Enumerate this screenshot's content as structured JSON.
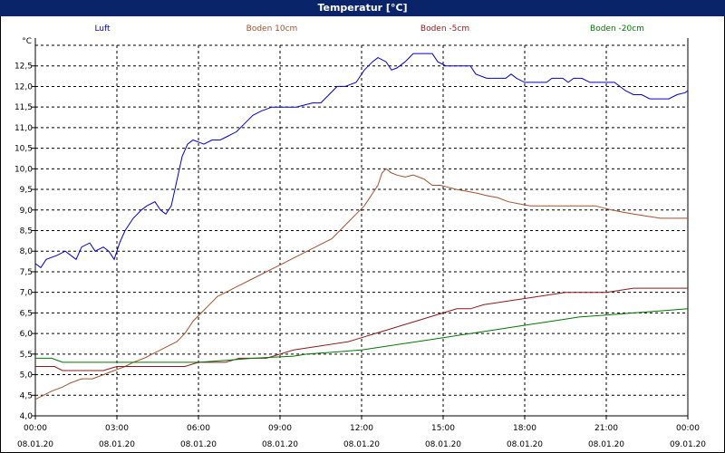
{
  "window": {
    "title": "Temperatur [°C]"
  },
  "chart_data": {
    "type": "line",
    "unit_label": "°C",
    "ylim": [
      4.0,
      13.0
    ],
    "yticks": [
      "4,0",
      "4,5",
      "5,0",
      "5,5",
      "6,0",
      "6,5",
      "7,0",
      "7,5",
      "8,0",
      "8,5",
      "9,0",
      "9,5",
      "10,0",
      "10,5",
      "11,0",
      "11,5",
      "12,0",
      "12,5"
    ],
    "xlim": [
      0,
      24
    ],
    "xticks": [
      {
        "x": 0,
        "time": "00:00",
        "date": "08.01.20"
      },
      {
        "x": 3,
        "time": "03:00",
        "date": "08.01.20"
      },
      {
        "x": 6,
        "time": "06:00",
        "date": "08.01.20"
      },
      {
        "x": 9,
        "time": "09:00",
        "date": "08.01.20"
      },
      {
        "x": 12,
        "time": "12:00",
        "date": "08.01.20"
      },
      {
        "x": 15,
        "time": "15:00",
        "date": "08.01.20"
      },
      {
        "x": 18,
        "time": "18:00",
        "date": "08.01.20"
      },
      {
        "x": 21,
        "time": "21:00",
        "date": "08.01.20"
      },
      {
        "x": 24,
        "time": "00:00",
        "date": "09.01.20"
      }
    ],
    "grid": true,
    "legend_position": "top",
    "series": [
      {
        "name": "Luft",
        "color": "#0000cc",
        "points": [
          [
            0,
            7.7
          ],
          [
            0.2,
            7.6
          ],
          [
            0.4,
            7.8
          ],
          [
            0.8,
            7.9
          ],
          [
            1.1,
            8.0
          ],
          [
            1.3,
            7.9
          ],
          [
            1.5,
            7.8
          ],
          [
            1.7,
            8.1
          ],
          [
            2.0,
            8.2
          ],
          [
            2.2,
            8.0
          ],
          [
            2.5,
            8.1
          ],
          [
            2.7,
            8.0
          ],
          [
            2.9,
            7.8
          ],
          [
            3.1,
            8.2
          ],
          [
            3.3,
            8.5
          ],
          [
            3.6,
            8.8
          ],
          [
            3.9,
            9.0
          ],
          [
            4.1,
            9.1
          ],
          [
            4.4,
            9.2
          ],
          [
            4.6,
            9.0
          ],
          [
            4.8,
            8.9
          ],
          [
            5.0,
            9.1
          ],
          [
            5.2,
            9.7
          ],
          [
            5.4,
            10.3
          ],
          [
            5.6,
            10.6
          ],
          [
            5.8,
            10.7
          ],
          [
            6.0,
            10.65
          ],
          [
            6.2,
            10.6
          ],
          [
            6.5,
            10.7
          ],
          [
            6.8,
            10.7
          ],
          [
            7.1,
            10.8
          ],
          [
            7.4,
            10.9
          ],
          [
            7.7,
            11.1
          ],
          [
            8.0,
            11.3
          ],
          [
            8.3,
            11.4
          ],
          [
            8.7,
            11.5
          ],
          [
            9.2,
            11.5
          ],
          [
            9.6,
            11.5
          ],
          [
            9.9,
            11.55
          ],
          [
            10.2,
            11.6
          ],
          [
            10.5,
            11.6
          ],
          [
            10.8,
            11.8
          ],
          [
            11.1,
            12.0
          ],
          [
            11.4,
            12.0
          ],
          [
            11.8,
            12.1
          ],
          [
            12.1,
            12.4
          ],
          [
            12.4,
            12.6
          ],
          [
            12.6,
            12.7
          ],
          [
            12.9,
            12.6
          ],
          [
            13.1,
            12.4
          ],
          [
            13.3,
            12.45
          ],
          [
            13.6,
            12.6
          ],
          [
            13.9,
            12.8
          ],
          [
            14.3,
            12.8
          ],
          [
            14.6,
            12.8
          ],
          [
            14.8,
            12.6
          ],
          [
            15.1,
            12.5
          ],
          [
            15.5,
            12.5
          ],
          [
            16.0,
            12.5
          ],
          [
            16.2,
            12.3
          ],
          [
            16.6,
            12.2
          ],
          [
            17.0,
            12.2
          ],
          [
            17.3,
            12.2
          ],
          [
            17.5,
            12.3
          ],
          [
            17.7,
            12.2
          ],
          [
            18.0,
            12.1
          ],
          [
            18.4,
            12.1
          ],
          [
            18.8,
            12.1
          ],
          [
            19.0,
            12.2
          ],
          [
            19.4,
            12.2
          ],
          [
            19.6,
            12.1
          ],
          [
            19.8,
            12.2
          ],
          [
            20.1,
            12.2
          ],
          [
            20.4,
            12.1
          ],
          [
            20.7,
            12.1
          ],
          [
            21.0,
            12.1
          ],
          [
            21.3,
            12.1
          ],
          [
            21.5,
            12.0
          ],
          [
            21.7,
            11.9
          ],
          [
            22.0,
            11.8
          ],
          [
            22.3,
            11.8
          ],
          [
            22.6,
            11.7
          ],
          [
            23.0,
            11.7
          ],
          [
            23.3,
            11.7
          ],
          [
            23.6,
            11.8
          ],
          [
            23.9,
            11.85
          ],
          [
            24.0,
            11.9
          ]
        ]
      },
      {
        "name": "Boden 10cm",
        "color": "#a0522d",
        "points": [
          [
            0,
            4.4
          ],
          [
            0.3,
            4.5
          ],
          [
            0.6,
            4.6
          ],
          [
            1.0,
            4.7
          ],
          [
            1.3,
            4.8
          ],
          [
            1.7,
            4.9
          ],
          [
            2.1,
            4.9
          ],
          [
            2.5,
            5.0
          ],
          [
            2.9,
            5.1
          ],
          [
            3.3,
            5.2
          ],
          [
            3.6,
            5.3
          ],
          [
            4.0,
            5.4
          ],
          [
            4.3,
            5.5
          ],
          [
            4.6,
            5.6
          ],
          [
            4.9,
            5.7
          ],
          [
            5.2,
            5.8
          ],
          [
            5.5,
            6.0
          ],
          [
            5.8,
            6.3
          ],
          [
            6.1,
            6.5
          ],
          [
            6.4,
            6.7
          ],
          [
            6.7,
            6.9
          ],
          [
            7.0,
            7.0
          ],
          [
            7.3,
            7.1
          ],
          [
            7.6,
            7.2
          ],
          [
            7.9,
            7.3
          ],
          [
            8.2,
            7.4
          ],
          [
            8.5,
            7.5
          ],
          [
            8.8,
            7.6
          ],
          [
            9.1,
            7.7
          ],
          [
            9.4,
            7.8
          ],
          [
            9.7,
            7.9
          ],
          [
            10.0,
            8.0
          ],
          [
            10.3,
            8.1
          ],
          [
            10.6,
            8.2
          ],
          [
            10.9,
            8.3
          ],
          [
            11.2,
            8.5
          ],
          [
            11.5,
            8.7
          ],
          [
            11.8,
            8.9
          ],
          [
            12.1,
            9.1
          ],
          [
            12.4,
            9.4
          ],
          [
            12.6,
            9.6
          ],
          [
            12.75,
            9.9
          ],
          [
            12.9,
            10.0
          ],
          [
            13.1,
            9.9
          ],
          [
            13.3,
            9.85
          ],
          [
            13.6,
            9.8
          ],
          [
            13.9,
            9.85
          ],
          [
            14.1,
            9.8
          ],
          [
            14.3,
            9.75
          ],
          [
            14.6,
            9.6
          ],
          [
            14.9,
            9.6
          ],
          [
            15.2,
            9.55
          ],
          [
            15.5,
            9.5
          ],
          [
            15.9,
            9.45
          ],
          [
            16.3,
            9.4
          ],
          [
            16.6,
            9.35
          ],
          [
            17.0,
            9.3
          ],
          [
            17.4,
            9.2
          ],
          [
            17.8,
            9.15
          ],
          [
            18.2,
            9.1
          ],
          [
            18.8,
            9.1
          ],
          [
            19.4,
            9.1
          ],
          [
            20.0,
            9.1
          ],
          [
            20.6,
            9.1
          ],
          [
            21.2,
            9.0
          ],
          [
            21.6,
            8.95
          ],
          [
            22.0,
            8.9
          ],
          [
            22.5,
            8.85
          ],
          [
            23.0,
            8.8
          ],
          [
            23.5,
            8.8
          ],
          [
            24.0,
            8.8
          ]
        ]
      },
      {
        "name": "Boden -5cm",
        "color": "#8b1a1a",
        "points": [
          [
            0,
            5.2
          ],
          [
            0.7,
            5.2
          ],
          [
            1.0,
            5.1
          ],
          [
            2.5,
            5.1
          ],
          [
            3.0,
            5.2
          ],
          [
            5.5,
            5.2
          ],
          [
            6.0,
            5.3
          ],
          [
            6.5,
            5.3
          ],
          [
            7.0,
            5.3
          ],
          [
            7.5,
            5.4
          ],
          [
            8.5,
            5.4
          ],
          [
            9.0,
            5.5
          ],
          [
            9.5,
            5.6
          ],
          [
            10.5,
            5.7
          ],
          [
            11.5,
            5.8
          ],
          [
            12.0,
            5.9
          ],
          [
            12.5,
            6.0
          ],
          [
            13.0,
            6.1
          ],
          [
            13.5,
            6.2
          ],
          [
            14.0,
            6.3
          ],
          [
            14.5,
            6.4
          ],
          [
            15.0,
            6.5
          ],
          [
            15.5,
            6.6
          ],
          [
            16.0,
            6.6
          ],
          [
            16.5,
            6.7
          ],
          [
            17.5,
            6.8
          ],
          [
            18.5,
            6.9
          ],
          [
            19.5,
            7.0
          ],
          [
            21.0,
            7.0
          ],
          [
            22.0,
            7.1
          ],
          [
            24.0,
            7.1
          ]
        ]
      },
      {
        "name": "Boden -20cm",
        "color": "#007700",
        "points": [
          [
            0,
            5.4
          ],
          [
            0.6,
            5.4
          ],
          [
            1.0,
            5.3
          ],
          [
            2.0,
            5.3
          ],
          [
            3.0,
            5.3
          ],
          [
            4.0,
            5.3
          ],
          [
            5.0,
            5.3
          ],
          [
            6.0,
            5.3
          ],
          [
            7.0,
            5.35
          ],
          [
            8.0,
            5.4
          ],
          [
            9.5,
            5.45
          ],
          [
            10.0,
            5.5
          ],
          [
            11.0,
            5.55
          ],
          [
            12.0,
            5.6
          ],
          [
            13.0,
            5.7
          ],
          [
            14.0,
            5.8
          ],
          [
            15.0,
            5.9
          ],
          [
            16.0,
            6.0
          ],
          [
            17.0,
            6.1
          ],
          [
            18.0,
            6.2
          ],
          [
            19.0,
            6.3
          ],
          [
            20.0,
            6.4
          ],
          [
            21.0,
            6.45
          ],
          [
            22.0,
            6.5
          ],
          [
            23.0,
            6.55
          ],
          [
            24.0,
            6.6
          ]
        ]
      }
    ]
  }
}
